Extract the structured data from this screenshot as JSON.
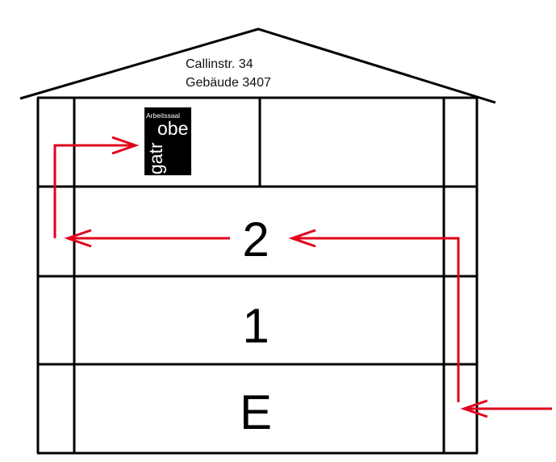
{
  "address": {
    "street": "Callinstr. 34",
    "building": "Gebäude 3407"
  },
  "logo": {
    "line_small": "Arbeitssaal",
    "line_big_right": "obe",
    "line_big_rotated": "gatr"
  },
  "floors": {
    "second": "2",
    "first": "1",
    "ground": "E"
  },
  "colors": {
    "arrow": "#e0001b",
    "walls": "#000000",
    "logo_background": "#000000"
  }
}
